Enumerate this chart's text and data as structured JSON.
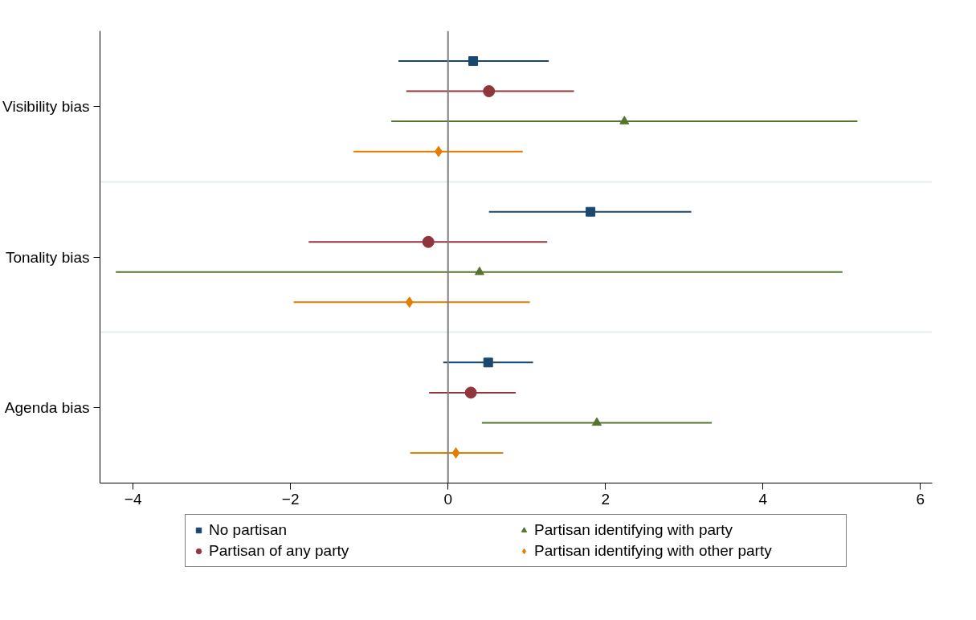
{
  "chart_data": {
    "type": "scatter",
    "orientation": "horizontal",
    "categories": [
      "Visibility bias",
      "Tonality bias",
      "Agenda bias"
    ],
    "series": [
      {
        "name": "No partisan",
        "color": "#1a476f",
        "marker": "square",
        "values": [
          0.32,
          1.81,
          0.51
        ],
        "errors": [
          [
            -0.63,
            1.28
          ],
          [
            0.52,
            3.09
          ],
          [
            -0.06,
            1.08
          ]
        ]
      },
      {
        "name": "Partisan of any party",
        "color": "#90353b",
        "marker": "circle",
        "values": [
          0.52,
          -0.25,
          0.29
        ],
        "errors": [
          [
            -0.53,
            1.6
          ],
          [
            -1.77,
            1.26
          ],
          [
            -0.24,
            0.86
          ]
        ]
      },
      {
        "name": "Partisan identifying with party",
        "color": "#55752f",
        "marker": "triangle",
        "values": [
          2.24,
          0.4,
          1.89
        ],
        "errors": [
          [
            -0.72,
            5.2
          ],
          [
            -4.22,
            5.01
          ],
          [
            0.43,
            3.35
          ]
        ]
      },
      {
        "name": "Partisan identifying with other party",
        "color": "#e37e00",
        "marker": "diamond",
        "values": [
          -0.12,
          -0.49,
          0.1
        ],
        "errors": [
          [
            -1.2,
            0.95
          ],
          [
            -1.96,
            1.04
          ],
          [
            -0.48,
            0.7
          ]
        ]
      }
    ],
    "xlim": [
      -4.42,
      6.15
    ],
    "xticks": [
      -4,
      -2,
      0,
      2,
      4,
      6
    ],
    "grid": "y",
    "legend": "bottom",
    "ref_lines": [
      {
        "axis": "x",
        "value": 0,
        "color": "#7f7f7f"
      }
    ]
  }
}
